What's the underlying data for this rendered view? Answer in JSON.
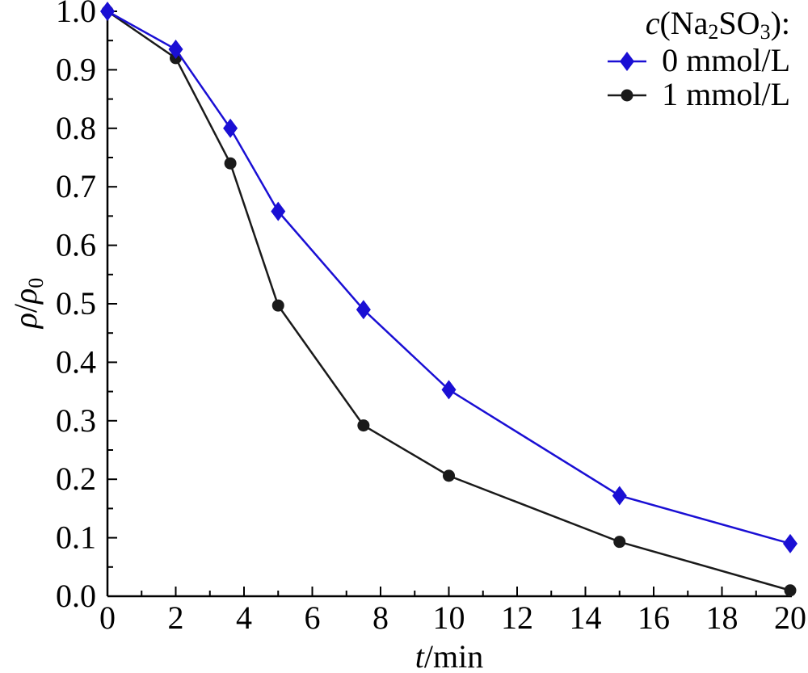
{
  "chart_data": {
    "type": "line",
    "xlabel": {
      "var": "t",
      "unit": "/min"
    },
    "ylabel": {
      "var": "ρ",
      "sep": "/",
      "var2": "ρ",
      "sub": "0"
    },
    "xlim": [
      0,
      20
    ],
    "ylim": [
      0.0,
      1.0
    ],
    "xticks": [
      "0",
      "2",
      "4",
      "6",
      "8",
      "10",
      "12",
      "14",
      "16",
      "18",
      "20"
    ],
    "yticks": [
      "0.0",
      "0.1",
      "0.2",
      "0.3",
      "0.4",
      "0.5",
      "0.6",
      "0.7",
      "0.8",
      "0.9",
      "1.0"
    ],
    "grid": false,
    "legend": {
      "placement": "top-right",
      "title": {
        "var": "c",
        "pre": "(Na",
        "s1": "2",
        "mid": "SO",
        "s2": "3",
        "post": "):"
      }
    },
    "series": [
      {
        "name": "0 mmol/L",
        "color": "#1a0fd4",
        "marker": "diamond",
        "x": [
          0,
          2,
          3.6,
          5,
          7.5,
          10,
          15,
          20
        ],
        "y": [
          1.0,
          0.935,
          0.8,
          0.658,
          0.49,
          0.353,
          0.172,
          0.09
        ]
      },
      {
        "name": "1 mmol/L",
        "color": "#1a1a1a",
        "marker": "circle",
        "x": [
          0,
          2,
          3.6,
          5,
          7.5,
          10,
          15,
          20
        ],
        "y": [
          1.0,
          0.92,
          0.74,
          0.497,
          0.292,
          0.206,
          0.093,
          0.01
        ]
      }
    ]
  }
}
